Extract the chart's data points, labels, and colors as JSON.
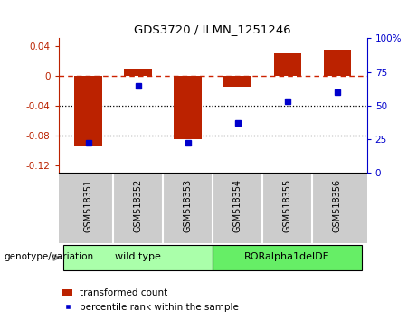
{
  "title": "GDS3720 / ILMN_1251246",
  "samples": [
    "GSM518351",
    "GSM518352",
    "GSM518353",
    "GSM518354",
    "GSM518355",
    "GSM518356"
  ],
  "bar_values": [
    -0.095,
    0.01,
    -0.085,
    -0.015,
    0.03,
    0.035
  ],
  "percentile_values": [
    22,
    65,
    22,
    37,
    53,
    60
  ],
  "bar_color": "#bb2200",
  "point_color": "#0000cc",
  "ylim_left": [
    -0.13,
    0.05
  ],
  "ylim_right": [
    0,
    100
  ],
  "yticks_left": [
    0.04,
    0.0,
    -0.04,
    -0.08,
    -0.12
  ],
  "yticks_right": [
    100,
    75,
    50,
    25,
    0
  ],
  "groups": [
    {
      "label": "wild type",
      "indices": [
        0,
        1,
        2
      ],
      "color": "#aaffaa"
    },
    {
      "label": "RORalpha1delDE",
      "indices": [
        3,
        4,
        5
      ],
      "color": "#66ee66"
    }
  ],
  "group_label": "genotype/variation",
  "legend_bar_label": "transformed count",
  "legend_point_label": "percentile rank within the sample",
  "hline_color": "#cc2200",
  "dotted_line_color": "#000000",
  "background_color": "#ffffff",
  "plot_bg_color": "#ffffff",
  "tick_area_color": "#cccccc",
  "bar_width": 0.55
}
